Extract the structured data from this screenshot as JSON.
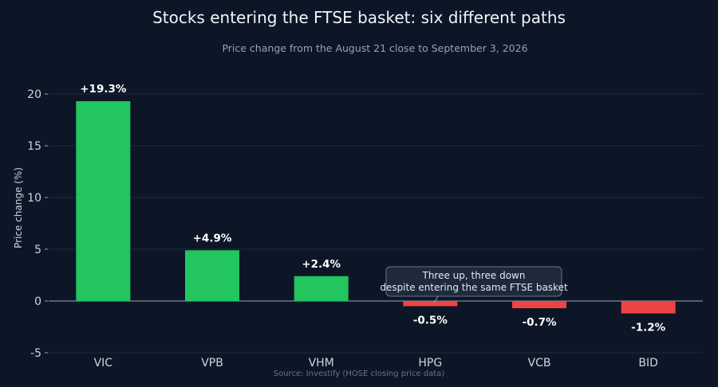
{
  "chart_data": {
    "type": "bar",
    "title": "Stocks entering the FTSE basket: six different paths",
    "subtitle": "Price change from the August 21 close to September 3, 2026",
    "ylabel": "Price change (%)",
    "xlabel": "",
    "source": "Source: Investify (HOSE closing price data)",
    "categories": [
      "VIC",
      "VPB",
      "VHM",
      "HPG",
      "VCB",
      "BID"
    ],
    "values": [
      19.3,
      4.9,
      2.4,
      -0.5,
      -0.7,
      -1.2
    ],
    "data_labels": [
      "+19.3%",
      "+4.9%",
      "+2.4%",
      "-0.5%",
      "-0.7%",
      "-1.2%"
    ],
    "ylim": [
      -5,
      21.5
    ],
    "yticks": [
      -5,
      0,
      5,
      10,
      15,
      20
    ],
    "grid": true,
    "legend": "none",
    "colors": {
      "positive": "#22c55e",
      "negative": "#ef4444",
      "background": "#0c1627"
    },
    "annotation": {
      "lines": [
        "Three up, three down",
        "despite entering the same FTSE basket"
      ],
      "target_category": "HPG"
    }
  }
}
